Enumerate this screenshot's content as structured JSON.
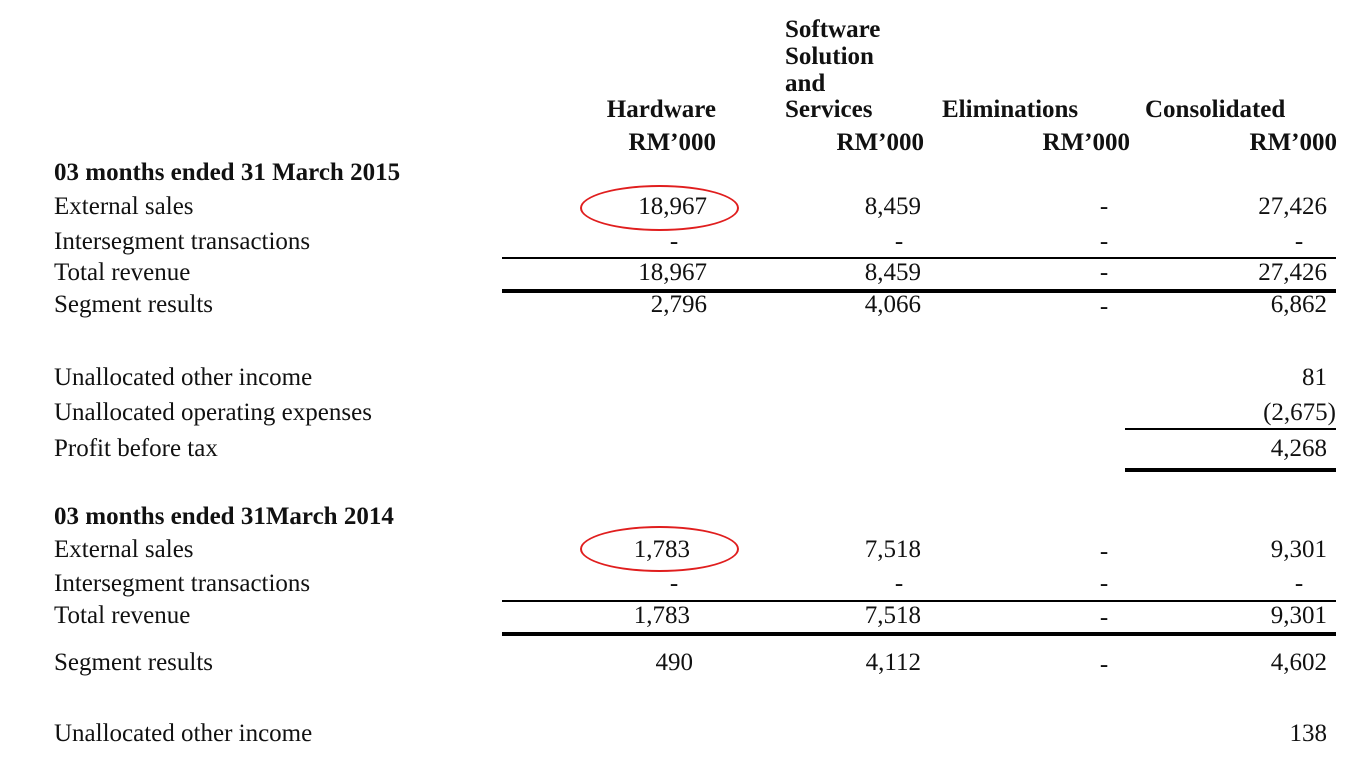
{
  "header": {
    "columns": [
      {
        "lines": [
          "Hardware"
        ],
        "unit": "RM’000"
      },
      {
        "lines": [
          "Software",
          "Solution",
          "and",
          "Services"
        ],
        "unit": "RM’000"
      },
      {
        "lines": [
          "Eliminations"
        ],
        "unit": "RM’000"
      },
      {
        "lines": [
          "Consolidated"
        ],
        "unit": "RM’000"
      }
    ]
  },
  "period_2015": {
    "title": "03 months ended 31 March 2015",
    "rows": [
      {
        "label": "External sales",
        "values": [
          "18,967",
          "8,459",
          "-",
          "27,426"
        ]
      },
      {
        "label": "Intersegment transactions",
        "values": [
          "-",
          "-",
          "-",
          "-"
        ]
      },
      {
        "label": "Total revenue",
        "values": [
          "18,967",
          "8,459",
          "-",
          "27,426"
        ]
      },
      {
        "label": "Segment results",
        "values": [
          "2,796",
          "4,066",
          "-",
          "6,862"
        ]
      }
    ],
    "unallocated": [
      {
        "label": "Unallocated other income",
        "value": "81"
      },
      {
        "label": "Unallocated operating expenses",
        "value": "(2,675)"
      },
      {
        "label": "Profit before tax",
        "value": "4,268"
      }
    ]
  },
  "period_2014": {
    "title": "03 months ended 31March 2014",
    "rows": [
      {
        "label": "External sales",
        "values": [
          "1,783",
          "7,518",
          "-",
          "9,301"
        ]
      },
      {
        "label": "Intersegment transactions",
        "values": [
          "-",
          "-",
          "-",
          "-"
        ]
      },
      {
        "label": "Total revenue",
        "values": [
          "1,783",
          "7,518",
          "-",
          "9,301"
        ]
      },
      {
        "label": "Segment results",
        "values": [
          "490",
          "4,112",
          "-",
          "4,602"
        ]
      }
    ],
    "unallocated": [
      {
        "label": "Unallocated other income",
        "value": "138"
      }
    ]
  },
  "highlight_color": "#e01e1e"
}
